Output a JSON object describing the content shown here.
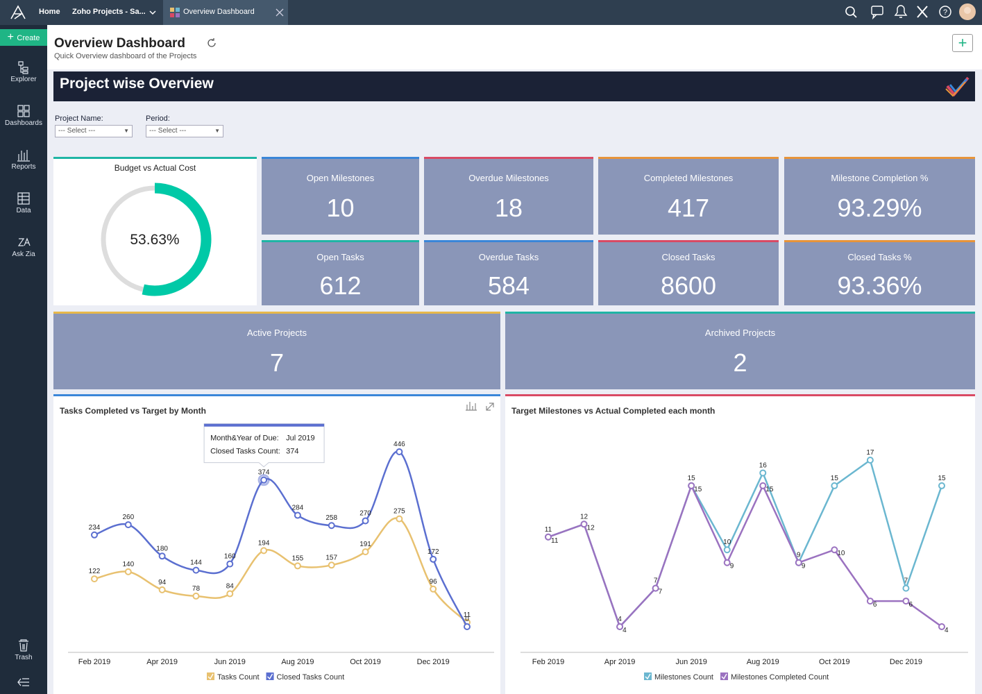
{
  "topbar": {
    "tabs": [
      "Home",
      "Zoho Projects - Sa...",
      "Overview Dashboard"
    ]
  },
  "sidebar": {
    "create": "Create",
    "items": [
      "Explorer",
      "Dashboards",
      "Reports",
      "Data",
      "Ask Zia"
    ],
    "trash": "Trash"
  },
  "header": {
    "title": "Overview Dashboard",
    "subtitle": "Quick Overview dashboard of the Projects"
  },
  "banner": {
    "title": "Project wise Overview"
  },
  "filters": [
    {
      "label": "Project Name:",
      "placeholder": "--- Select ---"
    },
    {
      "label": "Period:",
      "placeholder": "--- Select ---"
    }
  ],
  "gauge": {
    "title": "Budget vs Actual Cost",
    "value": 53.63,
    "value_label": "53.63%",
    "color": "#00c9a7"
  },
  "kpis": [
    {
      "title": "Open Milestones",
      "value": 10,
      "color": "#3a86d8"
    },
    {
      "title": "Overdue Milestones",
      "value": 18,
      "color": "#d94a64"
    },
    {
      "title": "Completed Milestones",
      "value": 417,
      "color": "#e8943a"
    },
    {
      "title": "Milestone Completion %",
      "value": 93.29,
      "value_label": "93.29%",
      "color": "#e8943a"
    },
    {
      "title": "Open Tasks",
      "value": 612,
      "color": "#1fb5a5"
    },
    {
      "title": "Overdue Tasks",
      "value": 584,
      "color": "#3a86d8"
    },
    {
      "title": "Closed Tasks",
      "value": 8600,
      "color": "#d94a64"
    },
    {
      "title": "Closed Tasks %",
      "value": 93.36,
      "value_label": "93.36%",
      "color": "#e8943a"
    },
    {
      "title": "Active Projects",
      "value": 7,
      "color": "#e8b84a"
    },
    {
      "title": "Archived Projects",
      "value": 2,
      "color": "#1fb5a5"
    }
  ],
  "chart_data": [
    {
      "type": "line",
      "smooth": true,
      "title": "Tasks Completed vs Target by Month",
      "accent": "#3a86d8",
      "categories": [
        "Feb 2019",
        null,
        "Apr 2019",
        null,
        "Jun 2019",
        null,
        "Aug 2019",
        null,
        "Oct 2019",
        null,
        "Dec 2019",
        null
      ],
      "series": [
        {
          "name": "Tasks Count",
          "color": "#e8c170",
          "values": [
            122,
            140,
            94,
            78,
            84,
            194,
            155,
            157,
            191,
            275,
            96,
            11
          ]
        },
        {
          "name": "Closed Tasks Count",
          "color": "#5b6fd0",
          "values": [
            234,
            260,
            180,
            144,
            160,
            374,
            284,
            258,
            270,
            446,
            172,
            0
          ]
        }
      ],
      "tooltip": {
        "series": 1,
        "index": 5,
        "lines": [
          {
            "label": "Month&Year of Due:",
            "value": "Jul 2019"
          },
          {
            "label": "Closed Tasks Count:",
            "value": 374
          }
        ]
      }
    },
    {
      "type": "line",
      "smooth": false,
      "title": "Target Milestones vs Actual Completed each month",
      "accent": "#d94a64",
      "categories": [
        "Feb 2019",
        null,
        "Apr 2019",
        null,
        "Jun 2019",
        null,
        "Aug 2019",
        null,
        "Oct 2019",
        null,
        "Dec 2019",
        null
      ],
      "series": [
        {
          "name": "Milestones Count",
          "color": "#6bb7d0",
          "values": [
            11,
            12,
            4,
            7,
            15,
            10,
            16,
            9,
            15,
            17,
            7,
            15
          ]
        },
        {
          "name": "Milestones Completed Count",
          "color": "#9b72c0",
          "values": [
            11,
            12,
            4,
            7,
            15,
            9,
            15,
            9,
            10,
            6,
            6,
            4
          ]
        }
      ]
    }
  ]
}
